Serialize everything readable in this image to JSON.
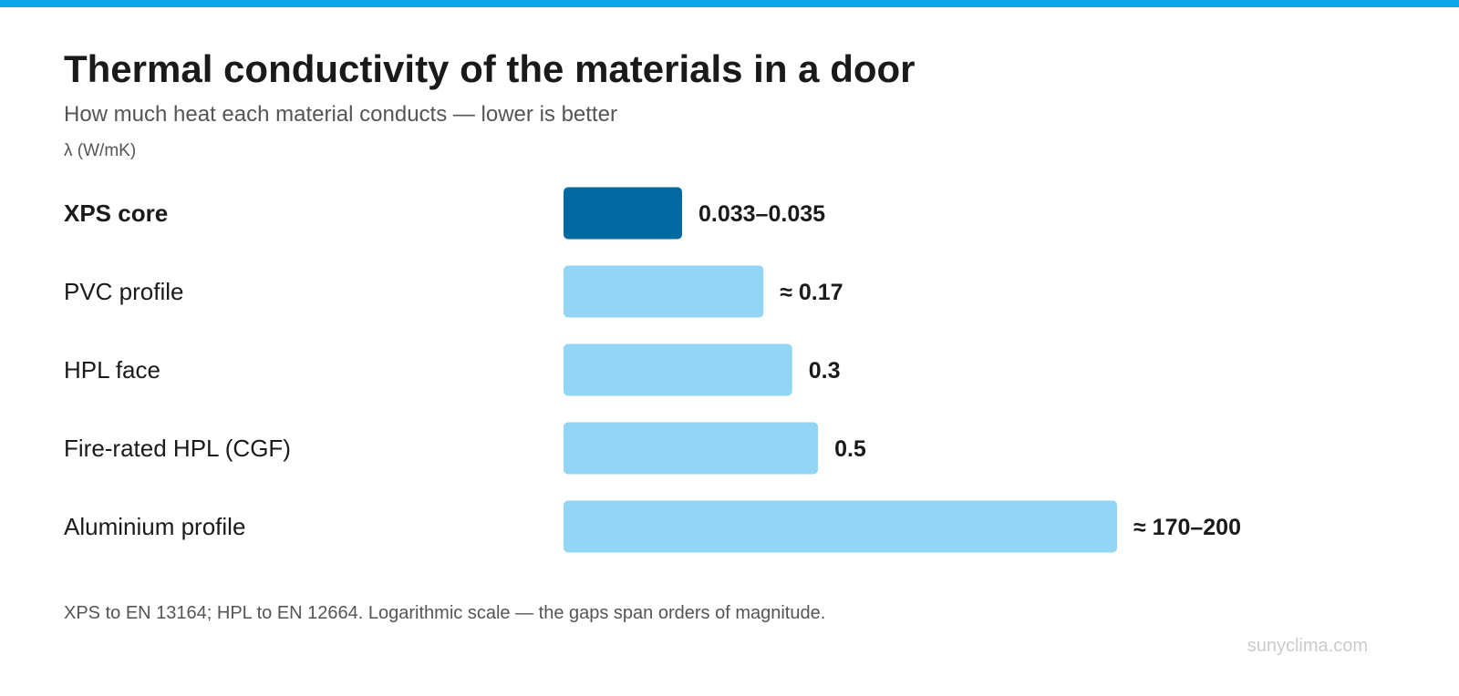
{
  "header": {
    "title": "Thermal conductivity of the materials in a door",
    "subtitle": "How much heat each material conducts — lower is better",
    "unit": "λ (W/mK)"
  },
  "footnote": "XPS to EN 13164; HPL to EN 12664. Logarithmic scale — the gaps span orders of magnitude.",
  "brand": "sunyclima.com",
  "colors": {
    "accent_bar": "#0ea5e9",
    "highlight": "#0369a1",
    "default_bar": "#93d5f4",
    "text": "#1a1a1a",
    "muted": "#555555"
  },
  "chart_data": {
    "type": "bar",
    "orientation": "horizontal",
    "scale": "log",
    "unit": "λ (W/mK)",
    "categories": [
      "XPS core",
      "PVC profile",
      "HPL face",
      "Fire-rated HPL (CGF)",
      "Aluminium profile"
    ],
    "values": [
      0.034,
      0.17,
      0.3,
      0.5,
      185
    ],
    "value_labels": [
      "0.033–0.035",
      "≈ 0.17",
      "0.3",
      "0.5",
      "≈ 170–200"
    ],
    "highlighted": [
      "XPS core"
    ],
    "grid": false,
    "legend": "none"
  }
}
